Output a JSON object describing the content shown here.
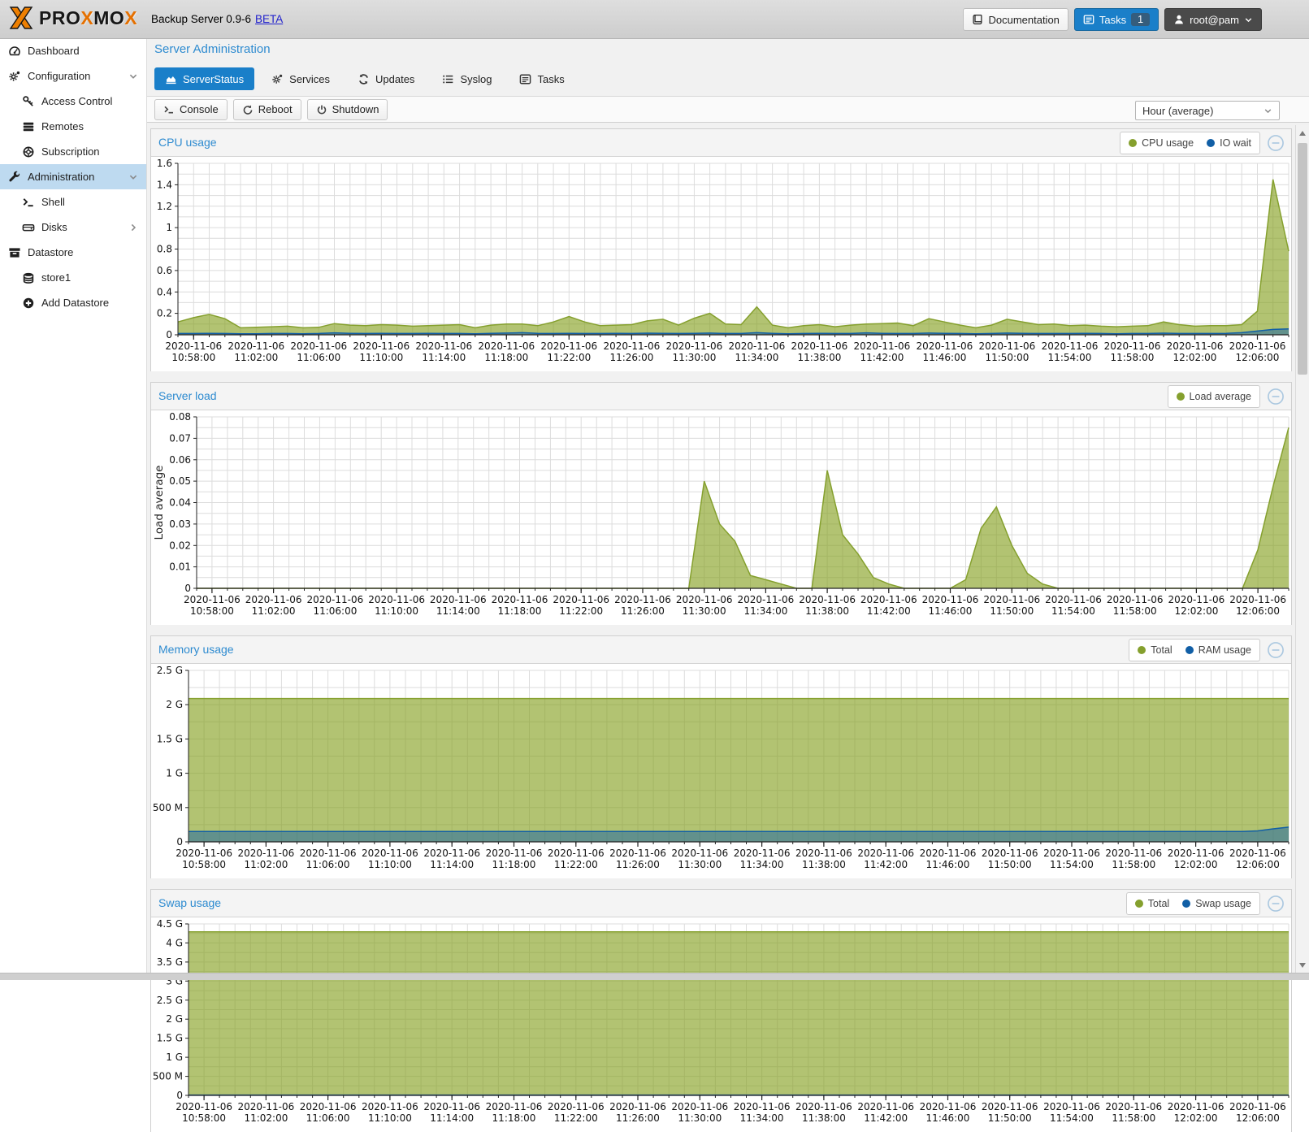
{
  "header": {
    "brand_segments": [
      {
        "text": "PRO",
        "color": "#171717"
      },
      {
        "text": "X",
        "color": "#e57000"
      },
      {
        "text": "MO",
        "color": "#171717"
      },
      {
        "text": "X",
        "color": "#e57000"
      }
    ],
    "subtitle": "Backup Server 0.9-6",
    "beta_link": "BETA",
    "documentation_label": "Documentation",
    "tasks_label": "Tasks",
    "tasks_badge": "1",
    "user_label": "root@pam"
  },
  "sidebar": {
    "items": [
      {
        "label": "Dashboard",
        "icon": "tachometer",
        "level": 0
      },
      {
        "label": "Configuration",
        "icon": "gears",
        "level": 0,
        "expanded": true
      },
      {
        "label": "Access Control",
        "icon": "key",
        "level": 1
      },
      {
        "label": "Remotes",
        "icon": "rows",
        "level": 1
      },
      {
        "label": "Subscription",
        "icon": "lifering",
        "level": 1
      },
      {
        "label": "Administration",
        "icon": "wrench",
        "level": 0,
        "selected": true,
        "expanded": true
      },
      {
        "label": "Shell",
        "icon": "terminal",
        "level": 1
      },
      {
        "label": "Disks",
        "icon": "hdd",
        "level": 1,
        "has_submenu": true
      },
      {
        "label": "Datastore",
        "icon": "box",
        "level": 0
      },
      {
        "label": "store1",
        "icon": "database",
        "level": 1
      },
      {
        "label": "Add Datastore",
        "icon": "plus-circle",
        "level": 1
      }
    ]
  },
  "main": {
    "page_title": "Server Administration",
    "tabs": [
      {
        "label": "ServerStatus",
        "icon": "chart-area",
        "active": true
      },
      {
        "label": "Services",
        "icon": "gears"
      },
      {
        "label": "Updates",
        "icon": "refresh"
      },
      {
        "label": "Syslog",
        "icon": "list"
      },
      {
        "label": "Tasks",
        "icon": "list-alt"
      }
    ],
    "toolbar": {
      "buttons": [
        {
          "label": "Console",
          "icon": "terminal"
        },
        {
          "label": "Reboot",
          "icon": "undo"
        },
        {
          "label": "Shutdown",
          "icon": "power"
        }
      ],
      "range_select_value": "Hour (average)"
    }
  },
  "colors": {
    "accent_blue": "#1a7fc9",
    "panel_title_blue": "#2e8bd0",
    "series_green": "#85a02e",
    "series_green_fill": "rgba(130,158,28,0.62)",
    "series_blue": "#115fa6",
    "series_blue_fill": "rgba(17,95,166,0.5)",
    "sidebar_selected_bg": "#bedaf0"
  },
  "chart_data": [
    {
      "type": "area",
      "title": "CPU usage",
      "n_points": 72,
      "x_tick_date": "2020-11-06",
      "x_tick_times": [
        "10:58:00",
        "11:02:00",
        "11:06:00",
        "11:10:00",
        "11:14:00",
        "11:18:00",
        "11:22:00",
        "11:26:00",
        "11:30:00",
        "11:34:00",
        "11:38:00",
        "11:42:00",
        "11:46:00",
        "11:50:00",
        "11:54:00",
        "11:58:00",
        "12:02:00",
        "12:06:00"
      ],
      "x_tick_indices": [
        1,
        5,
        9,
        13,
        17,
        21,
        25,
        29,
        33,
        37,
        41,
        45,
        49,
        53,
        57,
        61,
        65,
        69
      ],
      "ylim": [
        0,
        1.6
      ],
      "y_minor": 0.1,
      "y_ticks": [
        {
          "v": 1.6,
          "label": "1.6"
        },
        {
          "v": 1.4,
          "label": "1.4"
        },
        {
          "v": 1.2,
          "label": "1.2"
        },
        {
          "v": 1.0,
          "label": "1"
        },
        {
          "v": 0.8,
          "label": "0.8"
        },
        {
          "v": 0.6,
          "label": "0.6"
        },
        {
          "v": 0.4,
          "label": "0.4"
        },
        {
          "v": 0.2,
          "label": "0.2"
        },
        {
          "v": 0,
          "label": "0"
        }
      ],
      "series": [
        {
          "name": "CPU usage",
          "color": "#85a02e",
          "fill": "rgba(130,158,28,0.62)",
          "values": [
            0.12,
            0.16,
            0.19,
            0.15,
            0.065,
            0.07,
            0.075,
            0.08,
            0.065,
            0.07,
            0.105,
            0.09,
            0.085,
            0.095,
            0.09,
            0.08,
            0.085,
            0.09,
            0.095,
            0.065,
            0.09,
            0.1,
            0.1,
            0.085,
            0.12,
            0.17,
            0.12,
            0.085,
            0.09,
            0.095,
            0.13,
            0.145,
            0.09,
            0.155,
            0.2,
            0.1,
            0.095,
            0.26,
            0.09,
            0.065,
            0.085,
            0.095,
            0.075,
            0.09,
            0.1,
            0.105,
            0.11,
            0.085,
            0.15,
            0.12,
            0.09,
            0.065,
            0.09,
            0.145,
            0.12,
            0.095,
            0.1,
            0.085,
            0.09,
            0.08,
            0.075,
            0.08,
            0.085,
            0.12,
            0.095,
            0.08,
            0.085,
            0.085,
            0.095,
            0.22,
            1.45,
            0.78
          ]
        },
        {
          "name": "IO wait",
          "color": "#115fa6",
          "fill": "rgba(17,95,166,0.5)",
          "values": [
            0.012,
            0.012,
            0.014,
            0.012,
            0.01,
            0.01,
            0.012,
            0.012,
            0.01,
            0.012,
            0.018,
            0.014,
            0.012,
            0.014,
            0.012,
            0.012,
            0.014,
            0.012,
            0.012,
            0.01,
            0.014,
            0.016,
            0.02,
            0.014,
            0.012,
            0.014,
            0.012,
            0.012,
            0.014,
            0.012,
            0.015,
            0.014,
            0.012,
            0.014,
            0.016,
            0.012,
            0.012,
            0.02,
            0.014,
            0.01,
            0.012,
            0.014,
            0.012,
            0.012,
            0.018,
            0.014,
            0.012,
            0.012,
            0.016,
            0.014,
            0.012,
            0.01,
            0.012,
            0.016,
            0.014,
            0.012,
            0.012,
            0.012,
            0.014,
            0.012,
            0.01,
            0.012,
            0.012,
            0.015,
            0.012,
            0.012,
            0.012,
            0.014,
            0.02,
            0.035,
            0.05,
            0.055
          ]
        }
      ]
    },
    {
      "type": "area",
      "title": "Server load",
      "n_points": 72,
      "x_tick_date": "2020-11-06",
      "x_tick_times": [
        "10:58:00",
        "11:02:00",
        "11:06:00",
        "11:10:00",
        "11:14:00",
        "11:18:00",
        "11:22:00",
        "11:26:00",
        "11:30:00",
        "11:34:00",
        "11:38:00",
        "11:42:00",
        "11:46:00",
        "11:50:00",
        "11:54:00",
        "11:58:00",
        "12:02:00",
        "12:06:00"
      ],
      "x_tick_indices": [
        1,
        5,
        9,
        13,
        17,
        21,
        25,
        29,
        33,
        37,
        41,
        45,
        49,
        53,
        57,
        61,
        65,
        69
      ],
      "ylim": [
        0,
        0.08
      ],
      "y_minor": 0.005,
      "y_axis_label": "Load average",
      "y_ticks": [
        {
          "v": 0.08,
          "label": "0.08"
        },
        {
          "v": 0.07,
          "label": "0.07"
        },
        {
          "v": 0.06,
          "label": "0.06"
        },
        {
          "v": 0.05,
          "label": "0.05"
        },
        {
          "v": 0.04,
          "label": "0.04"
        },
        {
          "v": 0.03,
          "label": "0.03"
        },
        {
          "v": 0.02,
          "label": "0.02"
        },
        {
          "v": 0.01,
          "label": "0.01"
        },
        {
          "v": 0,
          "label": "0"
        }
      ],
      "series": [
        {
          "name": "Load average",
          "color": "#85a02e",
          "fill": "rgba(130,158,28,0.62)",
          "values": [
            0,
            0,
            0,
            0,
            0,
            0,
            0,
            0,
            0,
            0,
            0,
            0,
            0,
            0,
            0,
            0,
            0,
            0,
            0,
            0,
            0,
            0,
            0,
            0,
            0,
            0,
            0,
            0,
            0,
            0,
            0,
            0,
            0,
            0.05,
            0.03,
            0.022,
            0.006,
            0.004,
            0.002,
            0,
            0,
            0.055,
            0.025,
            0.016,
            0.005,
            0.002,
            0,
            0,
            0,
            0,
            0.004,
            0.028,
            0.038,
            0.02,
            0.007,
            0.002,
            0,
            0,
            0,
            0,
            0,
            0,
            0,
            0,
            0,
            0,
            0,
            0,
            0,
            0.018,
            0.048,
            0.075
          ]
        }
      ]
    },
    {
      "type": "area",
      "title": "Memory usage",
      "n_points": 72,
      "x_tick_date": "2020-11-06",
      "x_tick_times": [
        "10:58:00",
        "11:02:00",
        "11:06:00",
        "11:10:00",
        "11:14:00",
        "11:18:00",
        "11:22:00",
        "11:26:00",
        "11:30:00",
        "11:34:00",
        "11:38:00",
        "11:42:00",
        "11:46:00",
        "11:50:00",
        "11:54:00",
        "11:58:00",
        "12:02:00",
        "12:06:00"
      ],
      "x_tick_indices": [
        1,
        5,
        9,
        13,
        17,
        21,
        25,
        29,
        33,
        37,
        41,
        45,
        49,
        53,
        57,
        61,
        65,
        69
      ],
      "ylim": [
        0,
        2500000000
      ],
      "y_minor": 250000000,
      "y_ticks": [
        {
          "v": 2500000000,
          "label": "2.5 G"
        },
        {
          "v": 2000000000,
          "label": "2 G"
        },
        {
          "v": 1500000000,
          "label": "1.5 G"
        },
        {
          "v": 1000000000,
          "label": "1 G"
        },
        {
          "v": 500000000,
          "label": "500 M"
        },
        {
          "v": 0,
          "label": "0"
        }
      ],
      "series": [
        {
          "name": "Total",
          "color": "#85a02e",
          "fill": "rgba(130,158,28,0.62)",
          "values_flat": 2090000000
        },
        {
          "name": "RAM usage",
          "color": "#115fa6",
          "fill": "rgba(17,95,166,0.5)",
          "values_flat": 150000000,
          "overrides": {
            "69": 160000000,
            "70": 190000000,
            "71": 215000000
          }
        }
      ]
    },
    {
      "type": "area",
      "title": "Swap usage",
      "n_points": 72,
      "x_tick_date": "2020-11-06",
      "x_tick_times": [
        "10:58:00",
        "11:02:00",
        "11:06:00",
        "11:10:00",
        "11:14:00",
        "11:18:00",
        "11:22:00",
        "11:26:00",
        "11:30:00",
        "11:34:00",
        "11:38:00",
        "11:42:00",
        "11:46:00",
        "11:50:00",
        "11:54:00",
        "11:58:00",
        "12:02:00",
        "12:06:00"
      ],
      "x_tick_indices": [
        1,
        5,
        9,
        13,
        17,
        21,
        25,
        29,
        33,
        37,
        41,
        45,
        49,
        53,
        57,
        61,
        65,
        69
      ],
      "ylim": [
        0,
        4500000000
      ],
      "y_minor": 250000000,
      "y_ticks": [
        {
          "v": 4500000000,
          "label": "4.5 G"
        },
        {
          "v": 4000000000,
          "label": "4 G"
        },
        {
          "v": 3500000000,
          "label": "3.5 G"
        },
        {
          "v": 3000000000,
          "label": "3 G"
        },
        {
          "v": 2500000000,
          "label": "2.5 G"
        },
        {
          "v": 2000000000,
          "label": "2 G"
        },
        {
          "v": 1500000000,
          "label": "1.5 G"
        },
        {
          "v": 1000000000,
          "label": "1 G"
        },
        {
          "v": 500000000,
          "label": "500 M"
        },
        {
          "v": 0,
          "label": "0"
        }
      ],
      "series": [
        {
          "name": "Total",
          "color": "#85a02e",
          "fill": "rgba(130,158,28,0.62)",
          "values_flat": 4290000000
        },
        {
          "name": "Swap usage",
          "color": "#115fa6",
          "fill": "rgba(17,95,166,0.5)",
          "values_flat": 8000000
        }
      ]
    }
  ]
}
